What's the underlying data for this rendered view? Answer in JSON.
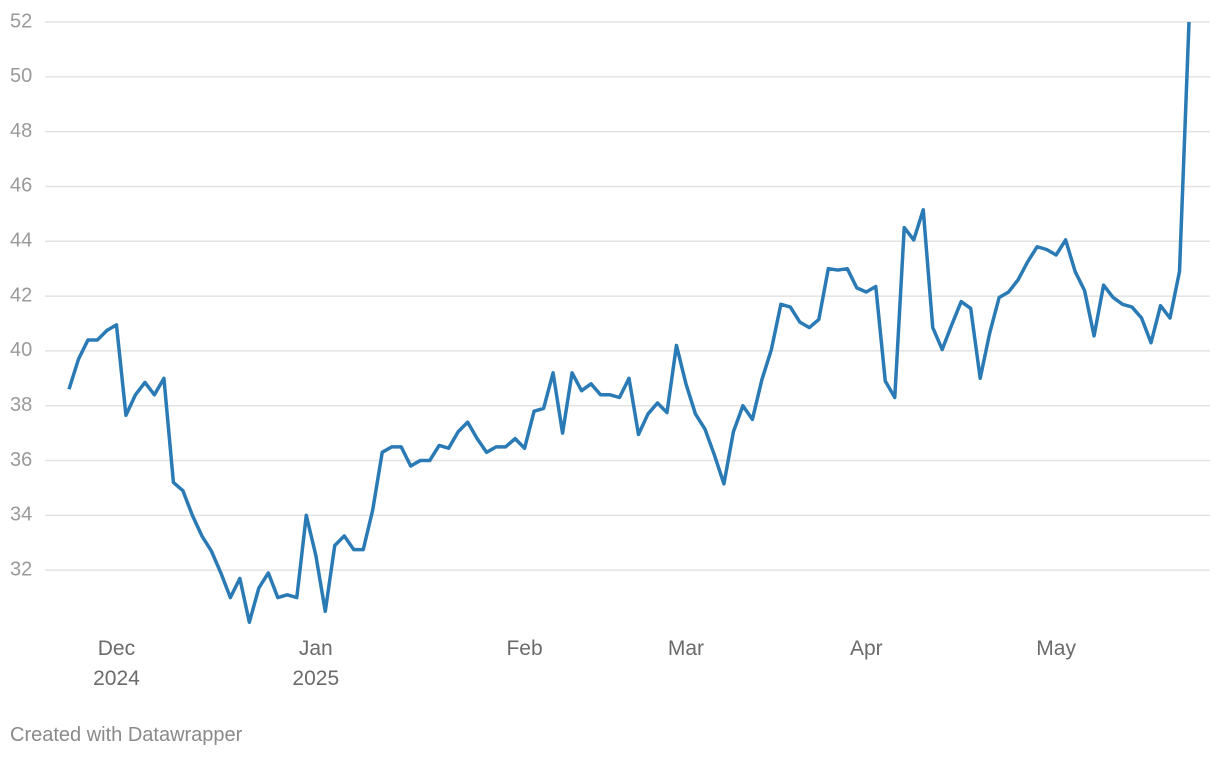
{
  "chart_data": {
    "type": "line",
    "categories": [
      null,
      null,
      null,
      null,
      null,
      "Dec\n2024",
      null,
      null,
      null,
      null,
      null,
      null,
      null,
      null,
      null,
      null,
      null,
      null,
      null,
      null,
      null,
      null,
      null,
      null,
      null,
      null,
      "Jan\n2025",
      null,
      null,
      null,
      null,
      null,
      null,
      null,
      null,
      null,
      null,
      null,
      null,
      null,
      null,
      null,
      null,
      null,
      null,
      null,
      null,
      null,
      "Feb",
      null,
      null,
      null,
      null,
      null,
      null,
      null,
      null,
      null,
      null,
      null,
      null,
      null,
      null,
      null,
      null,
      "Mar",
      null,
      null,
      null,
      null,
      null,
      null,
      null,
      null,
      null,
      null,
      null,
      null,
      null,
      null,
      null,
      null,
      null,
      null,
      "Apr",
      null,
      null,
      null,
      null,
      null,
      null,
      null,
      null,
      null,
      null,
      null,
      null,
      null,
      null,
      null,
      null,
      null,
      null,
      null,
      "May",
      null,
      null,
      null,
      null,
      null,
      null,
      null,
      null,
      null,
      null,
      null,
      null,
      null,
      null
    ],
    "values": [
      38.6,
      39.7,
      40.4,
      40.4,
      40.75,
      40.95,
      37.65,
      38.4,
      38.85,
      38.4,
      39.0,
      35.2,
      34.9,
      34.0,
      33.25,
      32.7,
      31.9,
      31.0,
      31.7,
      30.1,
      31.35,
      31.9,
      31.0,
      31.1,
      31.0,
      34.0,
      32.55,
      30.5,
      32.9,
      33.25,
      32.75,
      32.75,
      34.2,
      36.3,
      36.5,
      36.5,
      35.8,
      36.0,
      36.0,
      36.55,
      36.45,
      37.05,
      37.4,
      36.8,
      36.3,
      36.5,
      36.5,
      36.8,
      36.45,
      37.8,
      37.9,
      39.2,
      37.0,
      39.2,
      38.55,
      38.8,
      38.4,
      38.4,
      38.3,
      39.0,
      36.95,
      37.7,
      38.1,
      37.75,
      40.2,
      38.8,
      37.7,
      37.15,
      36.2,
      35.15,
      37.05,
      38.0,
      37.5,
      38.95,
      40.05,
      41.7,
      41.6,
      41.05,
      40.85,
      41.15,
      43.0,
      42.95,
      43.0,
      42.3,
      42.15,
      42.35,
      38.9,
      38.3,
      44.5,
      44.05,
      45.15,
      40.85,
      40.05,
      40.95,
      41.8,
      41.55,
      39.0,
      40.65,
      41.95,
      42.15,
      42.6,
      43.25,
      43.8,
      43.7,
      43.5,
      44.05,
      42.9,
      42.2,
      40.55,
      42.4,
      41.95,
      41.7,
      41.6,
      41.2,
      40.3,
      41.65,
      41.2,
      42.9,
      52.0
    ],
    "color": "#2a7ab5",
    "ylim": [
      30,
      52
    ],
    "yticks": [
      32,
      34,
      36,
      38,
      40,
      42,
      44,
      46,
      48,
      50,
      52
    ],
    "grid": true,
    "footer": "Created with Datawrapper"
  }
}
